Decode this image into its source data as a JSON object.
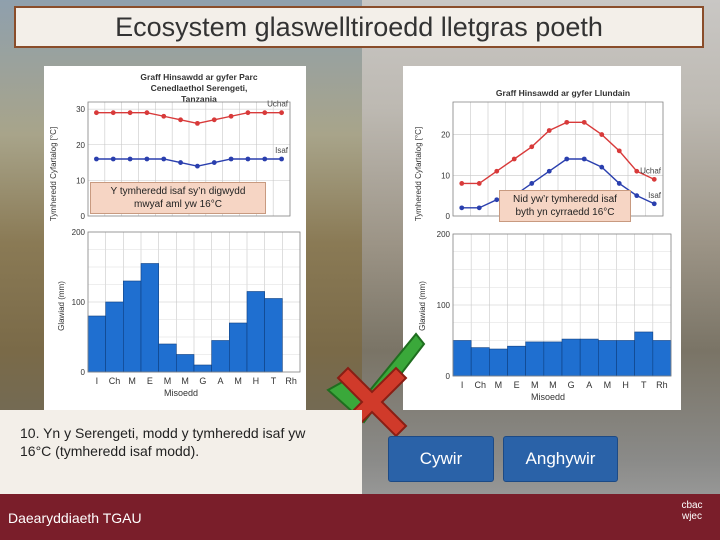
{
  "title": "Ecosystem glaswelltiroedd lletgras poeth",
  "question": "10. Yn y Serengeti, modd y tymheredd isaf yw 16°C (tymheredd isaf modd).",
  "answers": {
    "correct_label": "Cywir",
    "incorrect_label": "Anghywir"
  },
  "footer": {
    "text": "Daearyddiaeth TGAU",
    "logo_line1": "cbac",
    "logo_line2": "wjec"
  },
  "callouts": {
    "left": "Y tymheredd isaf sy’n digwydd mwyaf aml yw 16°C",
    "right": "Nid yw’r tymheredd isaf byth yn cyrraedd 16°C"
  },
  "icons": {
    "tick": "green-tick-icon",
    "cross": "red-cross-icon"
  },
  "chart_data": [
    {
      "type": "line",
      "title": "Graff Hinsawdd ar gyfer Parc Cenedlaethol Serengeti, Tanzania",
      "ylabel": "Tymheredd Cyfartalog [°C]",
      "yticks": [
        "0",
        "10",
        "20",
        "30"
      ],
      "ylim": [
        0,
        32
      ],
      "categories": [
        "I",
        "Ch",
        "M",
        "E",
        "M",
        "M",
        "G",
        "A",
        "M",
        "H",
        "T",
        "Rh"
      ],
      "series": [
        {
          "name": "Uchaf",
          "color": "#d83a3a",
          "values": [
            29,
            29,
            29,
            29,
            28,
            27,
            26,
            27,
            28,
            29,
            29,
            29
          ]
        },
        {
          "name": "Isaf",
          "color": "#2a3fae",
          "values": [
            16,
            16,
            16,
            16,
            16,
            15,
            14,
            15,
            16,
            16,
            16,
            16
          ]
        }
      ]
    },
    {
      "type": "bar",
      "ylabel": "Glawiad (mm)",
      "xlabel": "Misoedd",
      "yticks": [
        "0",
        "100",
        "200"
      ],
      "ylim": [
        0,
        200
      ],
      "categories": [
        "I",
        "Ch",
        "M",
        "E",
        "M",
        "M",
        "G",
        "A",
        "M",
        "H",
        "T",
        "Rh"
      ],
      "color": "#1f6fd0",
      "values": [
        80,
        100,
        130,
        155,
        40,
        25,
        10,
        45,
        70,
        115,
        105,
        0
      ]
    },
    {
      "type": "line",
      "title": "Graff Hinsawdd ar gyfer Llundain",
      "ylabel": "Tymheredd Cyfartalog [°C]",
      "yticks": [
        "0",
        "10",
        "20"
      ],
      "ylim": [
        0,
        28
      ],
      "categories": [
        "I",
        "Ch",
        "M",
        "E",
        "M",
        "M",
        "G",
        "A",
        "M",
        "H",
        "T",
        "Rh"
      ],
      "series": [
        {
          "name": "Uchaf",
          "color": "#d83a3a",
          "values": [
            8,
            8,
            11,
            14,
            17,
            21,
            23,
            23,
            20,
            16,
            11,
            9
          ]
        },
        {
          "name": "Isaf",
          "color": "#2a3fae",
          "values": [
            2,
            2,
            4,
            5,
            8,
            11,
            14,
            14,
            12,
            8,
            5,
            3
          ]
        }
      ]
    },
    {
      "type": "bar",
      "ylabel": "Glawiad (mm)",
      "xlabel": "Misoedd",
      "yticks": [
        "0",
        "100",
        "200"
      ],
      "ylim": [
        0,
        200
      ],
      "categories": [
        "I",
        "Ch",
        "M",
        "E",
        "M",
        "M",
        "G",
        "A",
        "M",
        "H",
        "T",
        "Rh"
      ],
      "color": "#1f6fd0",
      "values": [
        50,
        40,
        38,
        42,
        48,
        48,
        52,
        52,
        50,
        50,
        62,
        50
      ]
    }
  ]
}
